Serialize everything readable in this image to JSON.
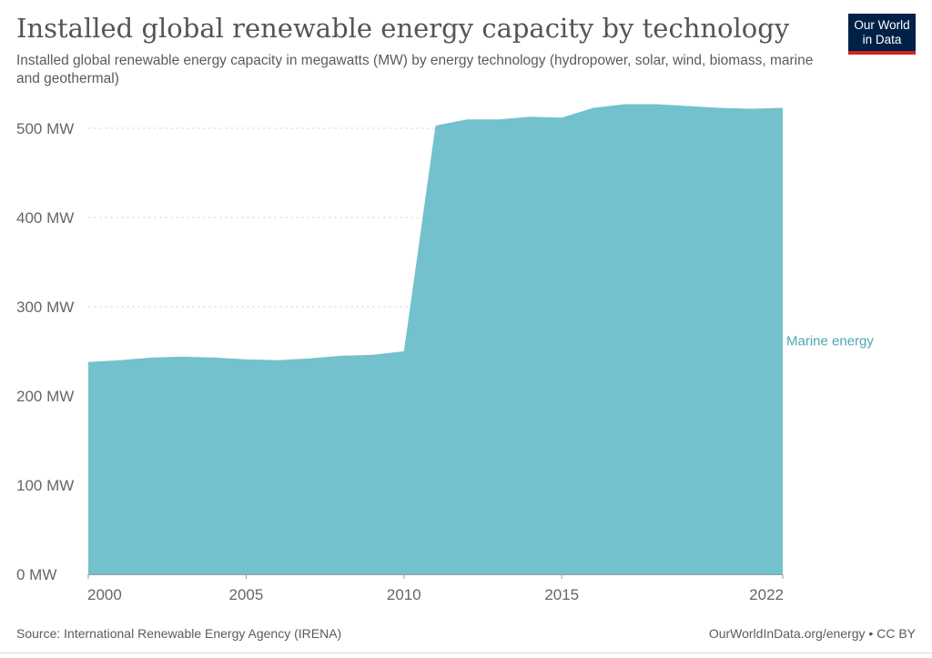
{
  "header": {
    "title": "Installed global renewable energy capacity by technology",
    "subtitle": "Installed global renewable energy capacity in megawatts (MW) by energy technology (hydropower, solar, wind, biomass, marine and geothermal)"
  },
  "logo": {
    "line1": "Our World",
    "line2": "in Data"
  },
  "footer": {
    "source": "Source: International Renewable Energy Agency (IRENA)",
    "credit": "OurWorldInData.org/energy • CC BY"
  },
  "colors": {
    "area": "#73c1cc",
    "label": "#4aa8b5",
    "grid": "#dddddd",
    "axis": "#999999"
  },
  "chart_data": {
    "type": "area",
    "title": "Installed global renewable energy capacity by technology",
    "xlabel": "",
    "ylabel": "",
    "ylim": [
      0,
      500
    ],
    "yticks": [
      0,
      100,
      200,
      300,
      400,
      500
    ],
    "ytick_labels": [
      "0 MW",
      "100 MW",
      "200 MW",
      "300 MW",
      "400 MW",
      "500 MW"
    ],
    "xlim": [
      2000,
      2022
    ],
    "xticks": [
      2000,
      2005,
      2010,
      2015,
      2022
    ],
    "xtick_labels": [
      "2000",
      "2005",
      "2010",
      "2015",
      "2022"
    ],
    "grid": true,
    "series": [
      {
        "name": "Marine energy",
        "x": [
          2000,
          2001,
          2002,
          2003,
          2004,
          2005,
          2006,
          2007,
          2008,
          2009,
          2010,
          2011,
          2012,
          2013,
          2014,
          2015,
          2016,
          2017,
          2018,
          2019,
          2020,
          2021,
          2022
        ],
        "values": [
          238,
          240,
          243,
          244,
          243,
          241,
          240,
          242,
          245,
          246,
          250,
          503,
          510,
          510,
          513,
          512,
          523,
          527,
          527,
          525,
          523,
          522,
          523
        ]
      }
    ]
  }
}
